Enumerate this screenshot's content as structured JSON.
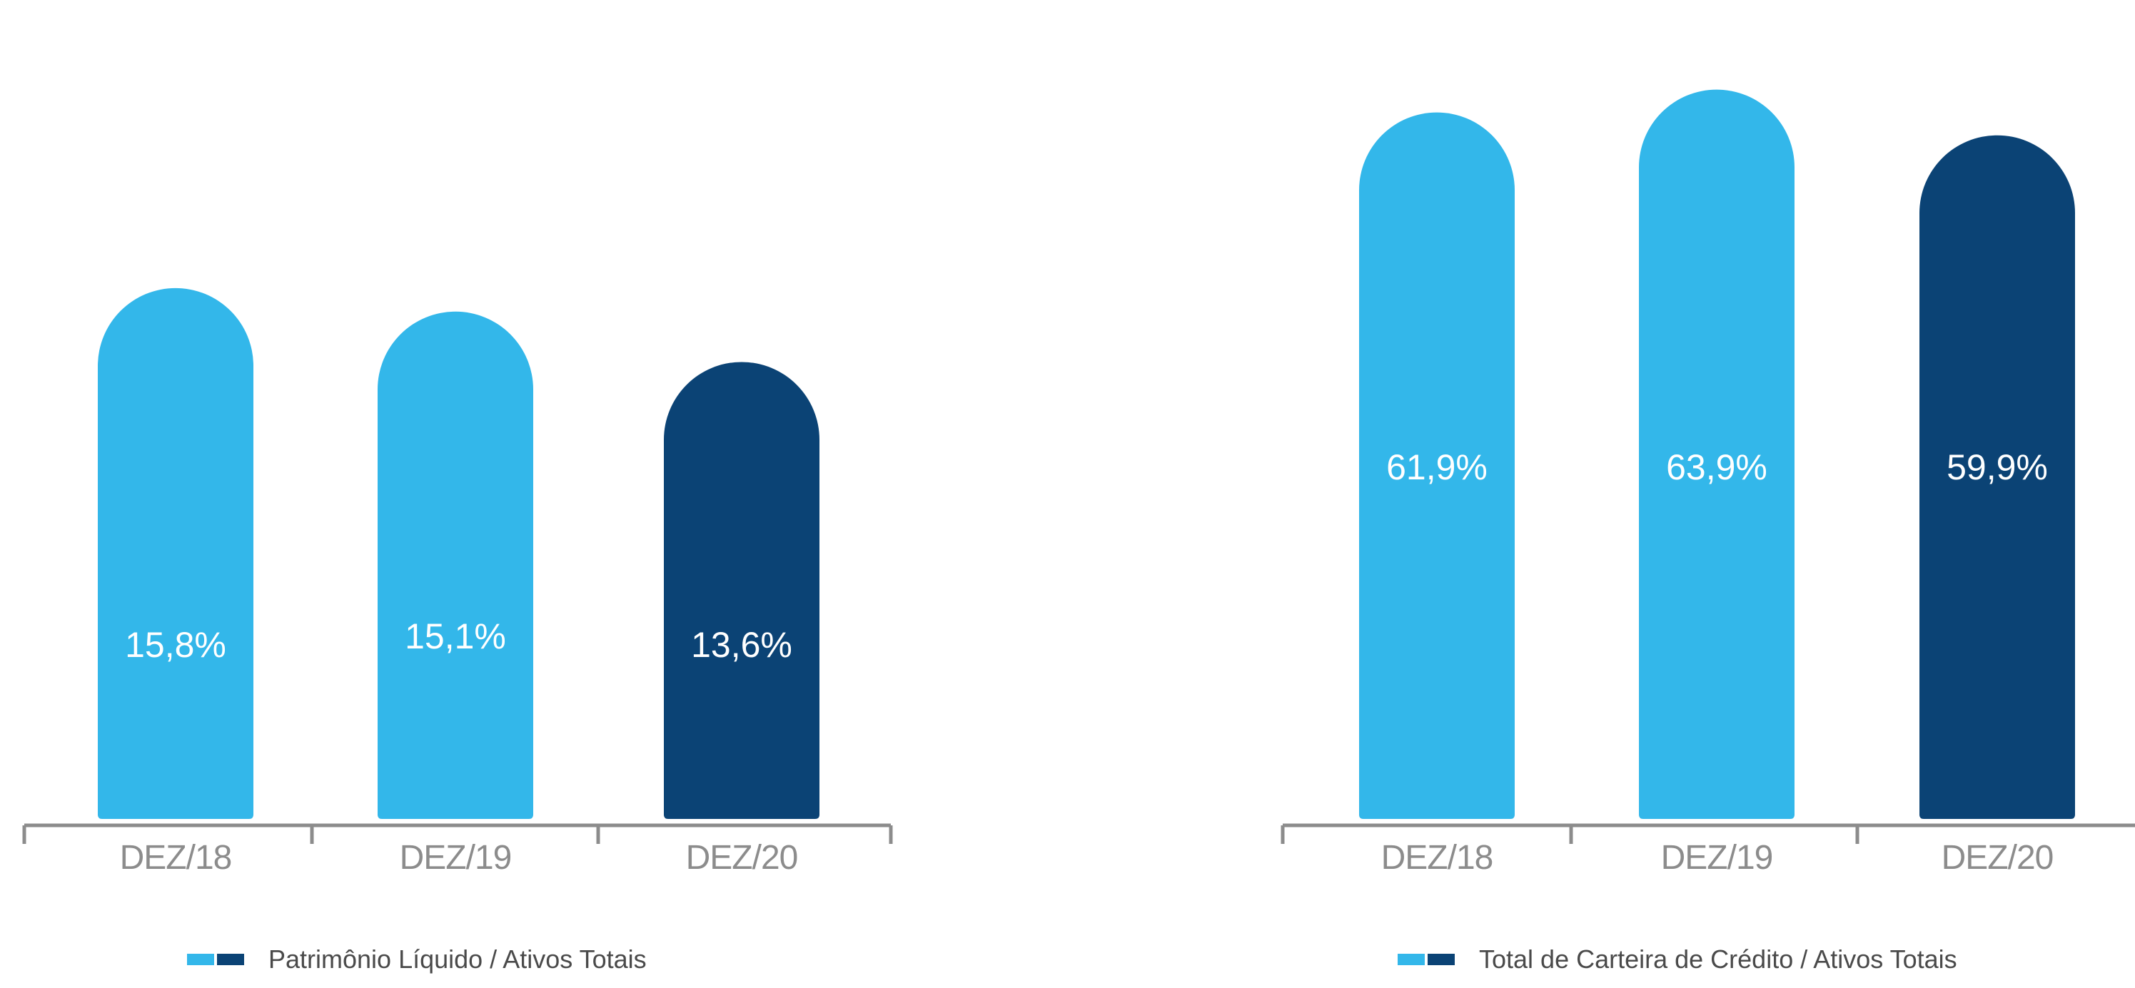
{
  "colors": {
    "light": "#33b7ea",
    "dark": "#0b4375",
    "axis": "#8c8c8c",
    "tick_text": "#8c8c8c",
    "value_text": "#ffffff"
  },
  "chart_data": [
    {
      "type": "bar",
      "categories": [
        "DEZ/18",
        "DEZ/19",
        "DEZ/20"
      ],
      "values": [
        15.8,
        15.1,
        13.6
      ],
      "value_labels": [
        "15,8%",
        "15,1%",
        "13,6%"
      ],
      "bar_colors": [
        "light",
        "light",
        "dark"
      ],
      "legend": "Patrimônio Líquido / Ativos Totais",
      "legend_placement": "bottom-center",
      "grid": false
    },
    {
      "type": "bar",
      "categories": [
        "DEZ/18",
        "DEZ/19",
        "DEZ/20"
      ],
      "values": [
        61.9,
        63.9,
        59.9
      ],
      "value_labels": [
        "61,9%",
        "63,9%",
        "59,9%"
      ],
      "bar_colors": [
        "light",
        "light",
        "dark"
      ],
      "legend": "Total de Carteira de Crédito / Ativos Totais",
      "legend_placement": "bottom-center",
      "grid": false
    }
  ]
}
